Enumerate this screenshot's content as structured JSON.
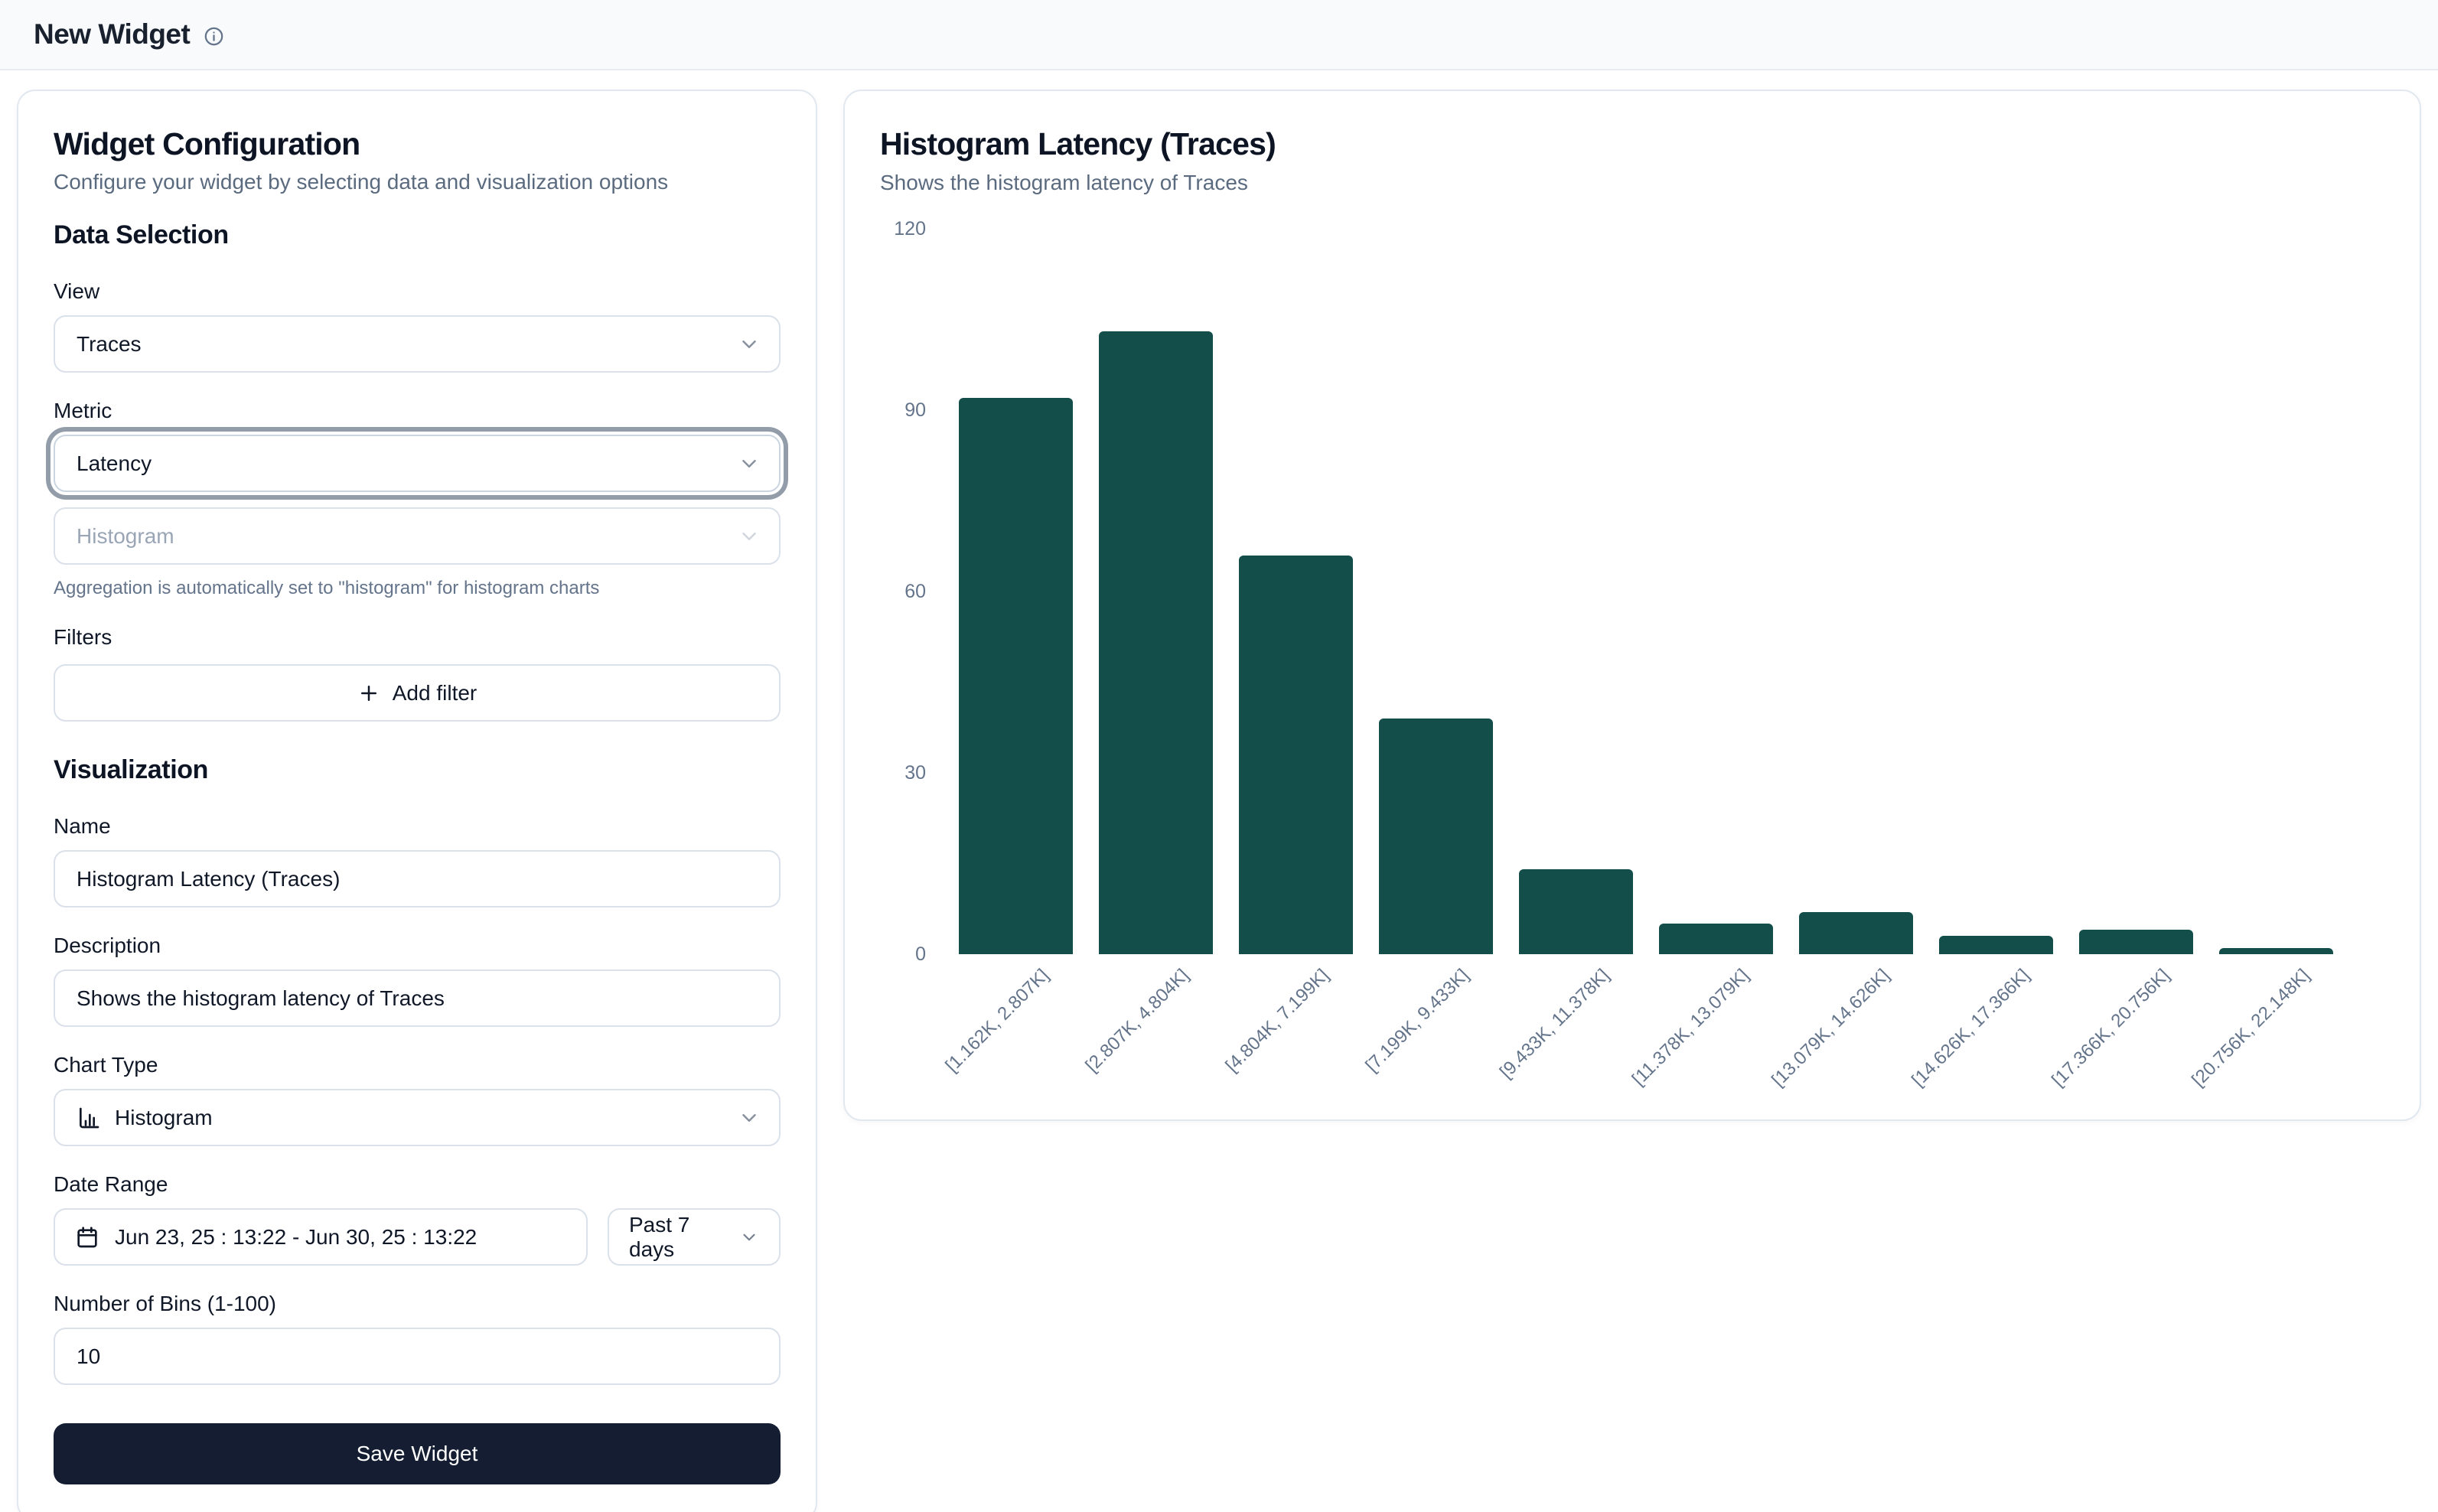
{
  "header": {
    "title": "New Widget"
  },
  "config": {
    "title": "Widget Configuration",
    "subtitle": "Configure your widget by selecting data and visualization options",
    "sections": {
      "data_selection": "Data Selection",
      "visualization": "Visualization"
    },
    "fields": {
      "view": {
        "label": "View",
        "value": "Traces"
      },
      "metric": {
        "label": "Metric",
        "value": "Latency"
      },
      "aggregation": {
        "value": "Histogram",
        "note": "Aggregation is automatically set to \"histogram\" for histogram charts"
      },
      "filters": {
        "label": "Filters",
        "add_button": "Add filter"
      },
      "name": {
        "label": "Name",
        "value": "Histogram Latency (Traces)"
      },
      "description": {
        "label": "Description",
        "value": "Shows the histogram latency of Traces"
      },
      "chart_type": {
        "label": "Chart Type",
        "value": "Histogram"
      },
      "date_range": {
        "label": "Date Range",
        "value": "Jun 23, 25 : 13:22 - Jun 30, 25 : 13:22",
        "preset": "Past 7 days"
      },
      "bins": {
        "label": "Number of Bins (1-100)",
        "value": "10"
      }
    },
    "save_button": "Save Widget"
  },
  "preview": {
    "title": "Histogram Latency (Traces)",
    "subtitle": "Shows the histogram latency of Traces"
  },
  "chart_data": {
    "type": "bar",
    "title": "Histogram Latency (Traces)",
    "categories": [
      "[1.162K, 2.807K]",
      "[2.807K, 4.804K]",
      "[4.804K, 7.199K]",
      "[7.199K, 9.433K]",
      "[9.433K, 11.378K]",
      "[11.378K, 13.079K]",
      "[13.079K, 14.626K]",
      "[14.626K, 17.366K]",
      "[17.366K, 20.756K]",
      "[20.756K, 22.148K]"
    ],
    "values": [
      92,
      103,
      66,
      39,
      14,
      5,
      7,
      3,
      4,
      1
    ],
    "xlabel": "",
    "ylabel": "",
    "ylim": [
      0,
      120
    ],
    "yticks": [
      0,
      30,
      60,
      90,
      120
    ],
    "grid": false,
    "legend": false,
    "bar_color": "#134e4a",
    "axis_label_color": "#64748b"
  },
  "colors": {
    "bar": "#134e4a",
    "primary_button": "#141d31",
    "card_border": "#e2e8f0",
    "muted_text": "#64748b",
    "topbar_bg": "#f8fafc"
  }
}
